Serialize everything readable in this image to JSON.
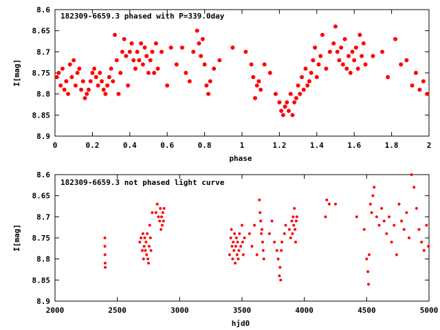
{
  "chart_data": [
    {
      "type": "scatter",
      "title": "182309-6659.3 phased with P=339.0day",
      "xlabel": "phase",
      "ylabel": "I[mag]",
      "xlim": [
        0,
        2
      ],
      "ylim": [
        8.6,
        8.9
      ],
      "y_inverted": true,
      "grid": false,
      "marker": "filled-circle",
      "color": "#ff0000",
      "x_ticks": [
        "0",
        "0.2",
        "0.4",
        "0.6",
        "0.8",
        "1",
        "1.2",
        "1.4",
        "1.6",
        "1.8",
        "2"
      ],
      "y_ticks": [
        "8.6",
        "8.65",
        "8.7",
        "8.75",
        "8.8",
        "8.85",
        "8.9"
      ],
      "series": [
        {
          "points": [
            [
              0.01,
              8.76
            ],
            [
              0.02,
              8.75
            ],
            [
              0.03,
              8.78
            ],
            [
              0.04,
              8.74
            ],
            [
              0.05,
              8.79
            ],
            [
              0.06,
              8.77
            ],
            [
              0.07,
              8.8
            ],
            [
              0.08,
              8.73
            ],
            [
              0.09,
              8.76
            ],
            [
              0.1,
              8.72
            ],
            [
              0.11,
              8.78
            ],
            [
              0.12,
              8.75
            ],
            [
              0.13,
              8.74
            ],
            [
              0.14,
              8.79
            ],
            [
              0.15,
              8.77
            ],
            [
              0.16,
              8.81
            ],
            [
              0.17,
              8.8
            ],
            [
              0.18,
              8.79
            ],
            [
              0.19,
              8.77
            ],
            [
              0.2,
              8.75
            ],
            [
              0.21,
              8.74
            ],
            [
              0.22,
              8.76
            ],
            [
              0.23,
              8.78
            ],
            [
              0.24,
              8.75
            ],
            [
              0.25,
              8.77
            ],
            [
              0.26,
              8.79
            ],
            [
              0.27,
              8.8
            ],
            [
              0.28,
              8.78
            ],
            [
              0.29,
              8.76
            ],
            [
              0.3,
              8.74
            ],
            [
              0.31,
              8.77
            ],
            [
              0.32,
              8.66
            ],
            [
              0.33,
              8.72
            ],
            [
              0.34,
              8.8
            ],
            [
              0.35,
              8.75
            ],
            [
              0.36,
              8.7
            ],
            [
              0.37,
              8.67
            ],
            [
              0.38,
              8.71
            ],
            [
              0.39,
              8.78
            ],
            [
              0.4,
              8.7
            ],
            [
              0.41,
              8.68
            ],
            [
              0.42,
              8.72
            ],
            [
              0.43,
              8.74
            ],
            [
              0.44,
              8.7
            ],
            [
              0.45,
              8.72
            ],
            [
              0.46,
              8.68
            ],
            [
              0.47,
              8.73
            ],
            [
              0.48,
              8.69
            ],
            [
              0.49,
              8.71
            ],
            [
              0.5,
              8.75
            ],
            [
              0.51,
              8.72
            ],
            [
              0.52,
              8.7
            ],
            [
              0.53,
              8.75
            ],
            [
              0.54,
              8.68
            ],
            [
              0.55,
              8.74
            ],
            [
              0.57,
              8.7
            ],
            [
              0.6,
              8.78
            ],
            [
              0.62,
              8.69
            ],
            [
              0.65,
              8.73
            ],
            [
              0.68,
              8.69
            ],
            [
              0.7,
              8.75
            ],
            [
              0.72,
              8.77
            ],
            [
              0.74,
              8.7
            ],
            [
              0.76,
              8.65
            ],
            [
              0.77,
              8.68
            ],
            [
              0.78,
              8.71
            ],
            [
              0.79,
              8.67
            ],
            [
              0.8,
              8.73
            ],
            [
              0.81,
              8.78
            ],
            [
              0.82,
              8.8
            ],
            [
              0.83,
              8.77
            ],
            [
              0.85,
              8.74
            ],
            [
              0.88,
              8.72
            ],
            [
              0.95,
              8.69
            ],
            [
              1.02,
              8.7
            ],
            [
              1.05,
              8.73
            ],
            [
              1.06,
              8.76
            ],
            [
              1.07,
              8.81
            ],
            [
              1.08,
              8.78
            ],
            [
              1.09,
              8.77
            ],
            [
              1.1,
              8.79
            ],
            [
              1.12,
              8.73
            ],
            [
              1.15,
              8.75
            ],
            [
              1.18,
              8.8
            ],
            [
              1.2,
              8.82
            ],
            [
              1.21,
              8.84
            ],
            [
              1.22,
              8.85
            ],
            [
              1.23,
              8.83
            ],
            [
              1.24,
              8.82
            ],
            [
              1.25,
              8.84
            ],
            [
              1.26,
              8.8
            ],
            [
              1.27,
              8.85
            ],
            [
              1.28,
              8.82
            ],
            [
              1.29,
              8.81
            ],
            [
              1.3,
              8.78
            ],
            [
              1.31,
              8.8
            ],
            [
              1.32,
              8.76
            ],
            [
              1.33,
              8.79
            ],
            [
              1.34,
              8.74
            ],
            [
              1.35,
              8.78
            ],
            [
              1.36,
              8.77
            ],
            [
              1.37,
              8.75
            ],
            [
              1.38,
              8.72
            ],
            [
              1.39,
              8.69
            ],
            [
              1.4,
              8.76
            ],
            [
              1.41,
              8.73
            ],
            [
              1.42,
              8.71
            ],
            [
              1.43,
              8.66
            ],
            [
              1.45,
              8.74
            ],
            [
              1.47,
              8.7
            ],
            [
              1.49,
              8.68
            ],
            [
              1.5,
              8.64
            ],
            [
              1.51,
              8.7
            ],
            [
              1.52,
              8.72
            ],
            [
              1.53,
              8.69
            ],
            [
              1.54,
              8.73
            ],
            [
              1.55,
              8.67
            ],
            [
              1.56,
              8.74
            ],
            [
              1.57,
              8.71
            ],
            [
              1.58,
              8.75
            ],
            [
              1.59,
              8.7
            ],
            [
              1.6,
              8.72
            ],
            [
              1.61,
              8.69
            ],
            [
              1.62,
              8.74
            ],
            [
              1.63,
              8.66
            ],
            [
              1.64,
              8.71
            ],
            [
              1.65,
              8.68
            ],
            [
              1.66,
              8.73
            ],
            [
              1.7,
              8.71
            ],
            [
              1.75,
              8.7
            ],
            [
              1.78,
              8.76
            ],
            [
              1.82,
              8.67
            ],
            [
              1.85,
              8.73
            ],
            [
              1.88,
              8.72
            ],
            [
              1.91,
              8.78
            ],
            [
              1.93,
              8.75
            ],
            [
              1.95,
              8.79
            ],
            [
              1.97,
              8.77
            ],
            [
              1.99,
              8.8
            ]
          ]
        }
      ]
    },
    {
      "type": "scatter",
      "title": "182309-6659.3 not phased light curve",
      "xlabel": "hjd0",
      "ylabel": "I[mag]",
      "xlim": [
        2000,
        5000
      ],
      "ylim": [
        8.6,
        8.9
      ],
      "y_inverted": true,
      "grid": false,
      "marker": "filled-circle",
      "color": "#ff0000",
      "x_ticks": [
        "2000",
        "2500",
        "3000",
        "3500",
        "4000",
        "4500",
        "5000"
      ],
      "y_ticks": [
        "8.6",
        "8.65",
        "8.7",
        "8.75",
        "8.8",
        "8.85",
        "8.9"
      ],
      "series": [
        {
          "points": [
            [
              2400,
              8.75
            ],
            [
              2400,
              8.77
            ],
            [
              2401,
              8.79
            ],
            [
              2402,
              8.81
            ],
            [
              2403,
              8.82
            ],
            [
              2680,
              8.76
            ],
            [
              2690,
              8.75
            ],
            [
              2700,
              8.78
            ],
            [
              2705,
              8.74
            ],
            [
              2710,
              8.8
            ],
            [
              2715,
              8.77
            ],
            [
              2720,
              8.75
            ],
            [
              2725,
              8.78
            ],
            [
              2730,
              8.76
            ],
            [
              2735,
              8.79
            ],
            [
              2740,
              8.74
            ],
            [
              2745,
              8.8
            ],
            [
              2750,
              8.81
            ],
            [
              2755,
              8.77
            ],
            [
              2760,
              8.72
            ],
            [
              2765,
              8.75
            ],
            [
              2770,
              8.78
            ],
            [
              2780,
              8.69
            ],
            [
              2810,
              8.69
            ],
            [
              2820,
              8.67
            ],
            [
              2830,
              8.7
            ],
            [
              2840,
              8.71
            ],
            [
              2845,
              8.68
            ],
            [
              2850,
              8.73
            ],
            [
              2855,
              8.7
            ],
            [
              2860,
              8.72
            ],
            [
              2865,
              8.69
            ],
            [
              2870,
              8.71
            ],
            [
              2875,
              8.68
            ],
            [
              3400,
              8.79
            ],
            [
              3410,
              8.75
            ],
            [
              3415,
              8.73
            ],
            [
              3420,
              8.77
            ],
            [
              3425,
              8.8
            ],
            [
              3430,
              8.76
            ],
            [
              3435,
              8.78
            ],
            [
              3440,
              8.74
            ],
            [
              3445,
              8.81
            ],
            [
              3450,
              8.77
            ],
            [
              3455,
              8.75
            ],
            [
              3460,
              8.79
            ],
            [
              3465,
              8.76
            ],
            [
              3470,
              8.8
            ],
            [
              3475,
              8.78
            ],
            [
              3480,
              8.74
            ],
            [
              3490,
              8.77
            ],
            [
              3500,
              8.72
            ],
            [
              3505,
              8.76
            ],
            [
              3510,
              8.79
            ],
            [
              3520,
              8.75
            ],
            [
              3560,
              8.74
            ],
            [
              3580,
              8.77
            ],
            [
              3600,
              8.72
            ],
            [
              3620,
              8.79
            ],
            [
              3640,
              8.66
            ],
            [
              3645,
              8.69
            ],
            [
              3650,
              8.71
            ],
            [
              3655,
              8.74
            ],
            [
              3660,
              8.73
            ],
            [
              3665,
              8.76
            ],
            [
              3670,
              8.78
            ],
            [
              3675,
              8.8
            ],
            [
              3720,
              8.74
            ],
            [
              3740,
              8.71
            ],
            [
              3760,
              8.76
            ],
            [
              3780,
              8.78
            ],
            [
              3790,
              8.8
            ],
            [
              3800,
              8.84
            ],
            [
              3805,
              8.82
            ],
            [
              3810,
              8.85
            ],
            [
              3815,
              8.78
            ],
            [
              3820,
              8.76
            ],
            [
              3840,
              8.74
            ],
            [
              3850,
              8.72
            ],
            [
              3880,
              8.73
            ],
            [
              3890,
              8.75
            ],
            [
              3900,
              8.71
            ],
            [
              3905,
              8.74
            ],
            [
              3910,
              8.7
            ],
            [
              3915,
              8.72
            ],
            [
              3920,
              8.68
            ],
            [
              3925,
              8.73
            ],
            [
              3930,
              8.76
            ],
            [
              3935,
              8.71
            ],
            [
              3940,
              8.7
            ],
            [
              4170,
              8.7
            ],
            [
              4180,
              8.66
            ],
            [
              4200,
              8.67
            ],
            [
              4250,
              8.67
            ],
            [
              4420,
              8.7
            ],
            [
              4480,
              8.73
            ],
            [
              4500,
              8.8
            ],
            [
              4510,
              8.83
            ],
            [
              4515,
              8.86
            ],
            [
              4520,
              8.79
            ],
            [
              4530,
              8.67
            ],
            [
              4540,
              8.69
            ],
            [
              4550,
              8.65
            ],
            [
              4560,
              8.63
            ],
            [
              4580,
              8.7
            ],
            [
              4600,
              8.72
            ],
            [
              4620,
              8.68
            ],
            [
              4640,
              8.71
            ],
            [
              4660,
              8.74
            ],
            [
              4680,
              8.7
            ],
            [
              4700,
              8.76
            ],
            [
              4720,
              8.72
            ],
            [
              4740,
              8.79
            ],
            [
              4760,
              8.67
            ],
            [
              4780,
              8.71
            ],
            [
              4800,
              8.73
            ],
            [
              4820,
              8.69
            ],
            [
              4840,
              8.75
            ],
            [
              4860,
              8.6
            ],
            [
              4880,
              8.63
            ],
            [
              4900,
              8.68
            ],
            [
              4920,
              8.73
            ],
            [
              4940,
              8.76
            ],
            [
              4960,
              8.78
            ],
            [
              4980,
              8.72
            ],
            [
              4995,
              8.77
            ]
          ]
        }
      ]
    }
  ]
}
